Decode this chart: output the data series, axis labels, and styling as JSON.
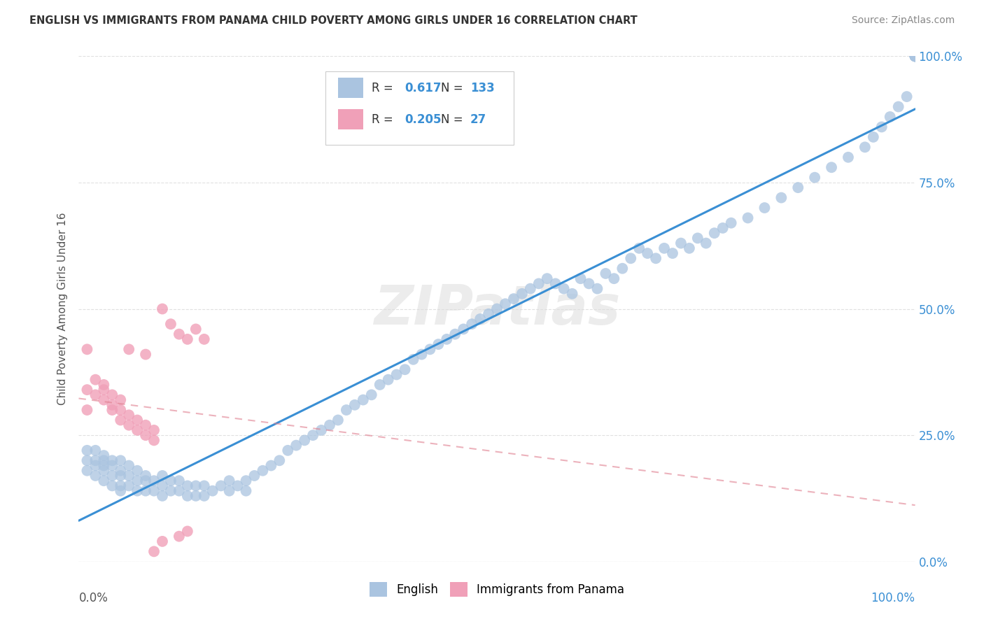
{
  "title": "ENGLISH VS IMMIGRANTS FROM PANAMA CHILD POVERTY AMONG GIRLS UNDER 16 CORRELATION CHART",
  "source": "Source: ZipAtlas.com",
  "ylabel": "Child Poverty Among Girls Under 16",
  "english_R": 0.617,
  "english_N": 133,
  "panama_R": 0.205,
  "panama_N": 27,
  "english_color": "#aac4e0",
  "english_line_color": "#3a8fd4",
  "panama_color": "#f0a0b8",
  "panama_line_color": "#e08090",
  "legend_english": "English",
  "legend_panama": "Immigrants from Panama",
  "yticks": [
    "0.0%",
    "25.0%",
    "50.0%",
    "75.0%",
    "100.0%"
  ],
  "ytick_vals": [
    0.0,
    0.25,
    0.5,
    0.75,
    1.0
  ],
  "background_color": "#ffffff",
  "grid_color": "#cccccc",
  "title_color": "#333333",
  "english_scatter_x": [
    0.01,
    0.01,
    0.01,
    0.02,
    0.02,
    0.02,
    0.02,
    0.03,
    0.03,
    0.03,
    0.03,
    0.03,
    0.04,
    0.04,
    0.04,
    0.04,
    0.05,
    0.05,
    0.05,
    0.05,
    0.05,
    0.06,
    0.06,
    0.06,
    0.07,
    0.07,
    0.07,
    0.08,
    0.08,
    0.08,
    0.09,
    0.09,
    0.1,
    0.1,
    0.1,
    0.11,
    0.11,
    0.12,
    0.12,
    0.13,
    0.13,
    0.14,
    0.14,
    0.15,
    0.15,
    0.16,
    0.17,
    0.18,
    0.18,
    0.19,
    0.2,
    0.2,
    0.21,
    0.22,
    0.23,
    0.24,
    0.25,
    0.26,
    0.27,
    0.28,
    0.29,
    0.3,
    0.31,
    0.32,
    0.33,
    0.34,
    0.35,
    0.36,
    0.37,
    0.38,
    0.39,
    0.4,
    0.41,
    0.42,
    0.43,
    0.44,
    0.45,
    0.46,
    0.47,
    0.48,
    0.49,
    0.5,
    0.51,
    0.52,
    0.53,
    0.54,
    0.55,
    0.56,
    0.57,
    0.58,
    0.59,
    0.6,
    0.61,
    0.62,
    0.63,
    0.64,
    0.65,
    0.66,
    0.67,
    0.68,
    0.69,
    0.7,
    0.71,
    0.72,
    0.73,
    0.74,
    0.75,
    0.76,
    0.77,
    0.78,
    0.8,
    0.82,
    0.84,
    0.86,
    0.88,
    0.9,
    0.92,
    0.94,
    0.95,
    0.96,
    0.97,
    0.98,
    0.99,
    1.0,
    1.0,
    1.0,
    1.0,
    1.0,
    1.0,
    1.0,
    1.0,
    1.0,
    1.0
  ],
  "english_scatter_y": [
    0.22,
    0.2,
    0.18,
    0.22,
    0.2,
    0.19,
    0.17,
    0.21,
    0.2,
    0.19,
    0.18,
    0.16,
    0.2,
    0.19,
    0.17,
    0.15,
    0.2,
    0.18,
    0.17,
    0.15,
    0.14,
    0.19,
    0.17,
    0.15,
    0.18,
    0.16,
    0.14,
    0.17,
    0.16,
    0.14,
    0.16,
    0.14,
    0.17,
    0.15,
    0.13,
    0.16,
    0.14,
    0.16,
    0.14,
    0.15,
    0.13,
    0.15,
    0.13,
    0.15,
    0.13,
    0.14,
    0.15,
    0.16,
    0.14,
    0.15,
    0.16,
    0.14,
    0.17,
    0.18,
    0.19,
    0.2,
    0.22,
    0.23,
    0.24,
    0.25,
    0.26,
    0.27,
    0.28,
    0.3,
    0.31,
    0.32,
    0.33,
    0.35,
    0.36,
    0.37,
    0.38,
    0.4,
    0.41,
    0.42,
    0.43,
    0.44,
    0.45,
    0.46,
    0.47,
    0.48,
    0.49,
    0.5,
    0.51,
    0.52,
    0.53,
    0.54,
    0.55,
    0.56,
    0.55,
    0.54,
    0.53,
    0.56,
    0.55,
    0.54,
    0.57,
    0.56,
    0.58,
    0.6,
    0.62,
    0.61,
    0.6,
    0.62,
    0.61,
    0.63,
    0.62,
    0.64,
    0.63,
    0.65,
    0.66,
    0.67,
    0.68,
    0.7,
    0.72,
    0.74,
    0.76,
    0.78,
    0.8,
    0.82,
    0.84,
    0.86,
    0.88,
    0.9,
    0.92,
    1.0,
    1.0,
    1.0,
    1.0,
    1.0,
    1.0,
    1.0,
    1.0,
    1.0,
    1.0
  ],
  "panama_scatter_x": [
    0.01,
    0.01,
    0.02,
    0.02,
    0.03,
    0.03,
    0.03,
    0.04,
    0.04,
    0.04,
    0.05,
    0.05,
    0.05,
    0.06,
    0.06,
    0.07,
    0.07,
    0.08,
    0.08,
    0.09,
    0.09,
    0.1,
    0.11,
    0.12,
    0.13,
    0.14,
    0.15
  ],
  "panama_scatter_y": [
    0.34,
    0.3,
    0.36,
    0.33,
    0.35,
    0.34,
    0.32,
    0.33,
    0.31,
    0.3,
    0.32,
    0.3,
    0.28,
    0.29,
    0.27,
    0.28,
    0.26,
    0.27,
    0.25,
    0.26,
    0.24,
    0.5,
    0.47,
    0.45,
    0.44,
    0.46,
    0.44
  ],
  "panama_outlier_x": [
    0.01,
    0.06,
    0.08,
    0.09,
    0.1,
    0.12,
    0.13
  ],
  "panama_outlier_y": [
    0.42,
    0.42,
    0.41,
    0.02,
    0.04,
    0.05,
    0.06
  ]
}
